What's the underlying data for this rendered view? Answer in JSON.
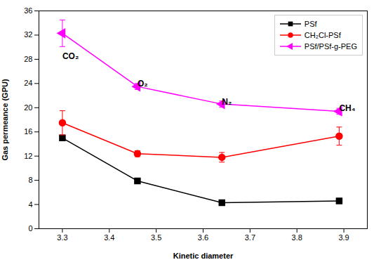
{
  "chart_data": {
    "type": "line",
    "xlabel": "Kinetic diameter",
    "ylabel": "Gas permeance (GPU)",
    "x": [
      3.3,
      3.46,
      3.64,
      3.89
    ],
    "series": [
      {
        "name": "PSf",
        "color": "#000000",
        "marker": "square",
        "values": [
          15.0,
          7.9,
          4.3,
          4.6
        ],
        "errors": [
          0.4,
          0.3,
          0.3,
          0.4
        ]
      },
      {
        "name": "CH₂Cl-PSf",
        "color": "#ff0000",
        "marker": "circle",
        "values": [
          17.5,
          12.4,
          11.8,
          15.3
        ],
        "errors": [
          2.0,
          0.5,
          0.8,
          1.5
        ]
      },
      {
        "name": "PSf/PSf-g-PEG",
        "color": "#ff00ff",
        "marker": "triangle-left",
        "values": [
          32.3,
          23.5,
          20.6,
          19.4
        ],
        "errors": [
          2.2,
          0.5,
          0.5,
          0.5
        ]
      }
    ],
    "annotations": [
      {
        "text": "CO₂",
        "x": 3.3,
        "y": 29.0
      },
      {
        "text": "O₂",
        "x": 3.46,
        "y": 24.5
      },
      {
        "text": "N₂",
        "x": 3.64,
        "y": 21.5
      },
      {
        "text": "CH₄",
        "x": 3.89,
        "y": 20.5
      }
    ],
    "xlim": [
      3.25,
      3.95
    ],
    "ylim": [
      0,
      36
    ],
    "xticks": [
      3.3,
      3.4,
      3.5,
      3.6,
      3.7,
      3.8,
      3.9
    ],
    "yticks": [
      0,
      4,
      8,
      12,
      16,
      20,
      24,
      28,
      32,
      36
    ],
    "legend": "upper right",
    "grid": false
  }
}
